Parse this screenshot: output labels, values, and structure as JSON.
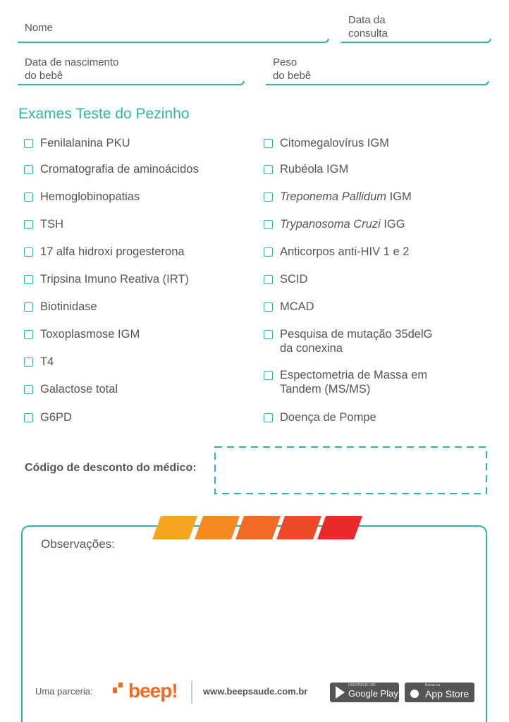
{
  "fields": [
    {
      "lines": [
        "Nome"
      ]
    },
    {
      "lines": [
        "Data da",
        "consulta"
      ]
    },
    {
      "lines": [
        "Data de nascimento",
        "do bebê"
      ]
    },
    {
      "lines": [
        "Peso",
        "do bebê"
      ]
    }
  ],
  "section_title": "Exames Teste do Pezinho",
  "left_items": [
    {
      "lines": [
        "Fenilalanina  PKU"
      ]
    },
    {
      "lines": [
        "Cromatografia de aminoácidos"
      ]
    },
    {
      "lines": [
        "Hemoglobinopatias"
      ]
    },
    {
      "lines": [
        "TSH"
      ]
    },
    {
      "lines": [
        "17 alfa hidroxi progesterona"
      ]
    },
    {
      "lines": [
        "Tripsina Imuno Reativa (IRT)"
      ]
    },
    {
      "lines": [
        "Biotinidase"
      ]
    },
    {
      "lines": [
        "Toxoplasmose IGM"
      ]
    },
    {
      "lines": [
        "T4"
      ]
    },
    {
      "lines": [
        "Galactose total"
      ]
    },
    {
      "lines": [
        "G6PD"
      ]
    }
  ],
  "right_items": [
    {
      "lines": [
        "Citomegalovírus IGM"
      ]
    },
    {
      "lines": [
        "Rubéola IGM"
      ]
    },
    {
      "italic": "Treponema Pallidum",
      "rest": "IGM"
    },
    {
      "italic": "Trypanosoma Cruzi",
      "rest": "IGG"
    },
    {
      "lines": [
        "Anticorpos anti-HIV 1 e 2"
      ]
    },
    {
      "lines": [
        "SCID"
      ]
    },
    {
      "lines": [
        "MCAD"
      ]
    },
    {
      "lines": [
        "Pesquisa de mutação 35delG",
        "da conexina"
      ]
    },
    {
      "lines": [
        "Espectometria de Massa em",
        "Tandem (MS/MS)"
      ]
    },
    {
      "lines": [
        "Doença de Pompe"
      ]
    }
  ],
  "discount_label": "Código de desconto do médico:",
  "observations_label": "Observações:",
  "footer": {
    "partner_label": "Uma parceria:",
    "logo": "beep!",
    "url": "www.beepsaude.com.br",
    "google_play": {
      "small": "DISPONÍVEL NO",
      "big": "Google Play"
    },
    "app_store": {
      "small": "Baixar na",
      "big": "App Store"
    }
  }
}
